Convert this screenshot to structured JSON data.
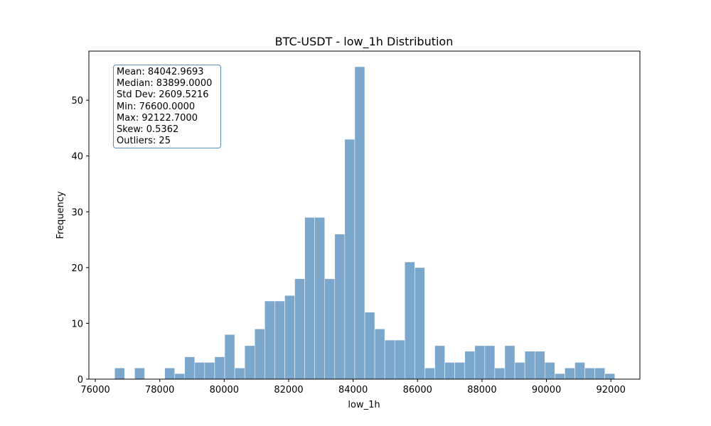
{
  "chart_data": {
    "type": "bar",
    "title": "BTC-USDT - low_1h Distribution",
    "xlabel": "low_1h",
    "ylabel": "Frequency",
    "xlim": [
      75800,
      92900
    ],
    "ylim": [
      0,
      58.8
    ],
    "xticks": [
      76000,
      78000,
      80000,
      82000,
      84000,
      86000,
      88000,
      90000,
      92000
    ],
    "yticks": [
      0,
      10,
      20,
      30,
      40,
      50
    ],
    "bin_start": 76600,
    "bin_width": 310.45,
    "counts": [
      2,
      0,
      2,
      0,
      0,
      2,
      1,
      4,
      3,
      3,
      4,
      8,
      2,
      6,
      9,
      14,
      14,
      15,
      18,
      29,
      29,
      18,
      26,
      43,
      56,
      12,
      9,
      7,
      7,
      21,
      20,
      2,
      6,
      3,
      3,
      5,
      6,
      6,
      2,
      6,
      3,
      5,
      5,
      3,
      1,
      2,
      3,
      2,
      2,
      1
    ],
    "bar_color": "#7ba7cc",
    "grid": false,
    "stats_box": {
      "placement": "top-left",
      "lines": [
        "Mean: 84042.9693",
        "Median: 83899.0000",
        "Std Dev: 2609.5216",
        "Min: 76600.0000",
        "Max: 92122.7000",
        "Skew: 0.5362",
        "Outliers: 25"
      ]
    }
  }
}
